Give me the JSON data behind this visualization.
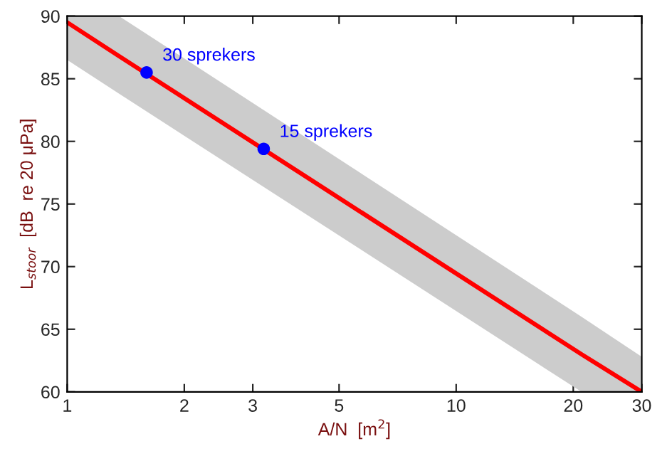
{
  "chart_data": {
    "type": "line",
    "xlabel": "A/N  [m$^{2}$]",
    "ylabel": "L$_{stoor}$  [dB  re 20 μPa]",
    "log": "x",
    "xlim": [
      1,
      30
    ],
    "xticks": [
      1,
      2,
      3,
      5,
      10,
      20,
      30
    ],
    "ylim": [
      60,
      90
    ],
    "yticks": [
      60,
      65,
      70,
      75,
      80,
      85,
      90
    ],
    "grid": false,
    "legend": false,
    "series": [
      {
        "color": "#ff0000",
        "x": [
          1,
          1.36,
          21,
          30
        ],
        "values": [
          89.5,
          86.8,
          63.0,
          60.0
        ],
        "lower": [
          86.5,
          83.8,
          60.0,
          60.0
        ],
        "upper": [
          90,
          90,
          66.0,
          62.8
        ]
      },
      {
        "type": "scatter",
        "color": "#0000ff",
        "x": [
          1.6,
          3.2
        ],
        "values": [
          85.5,
          79.4
        ]
      }
    ],
    "annotations": [
      {
        "text": "30 sprekers",
        "x": 1.6,
        "y": 85.5
      },
      {
        "text": "15 sprekers",
        "x": 3.2,
        "y": 79.4
      }
    ]
  }
}
